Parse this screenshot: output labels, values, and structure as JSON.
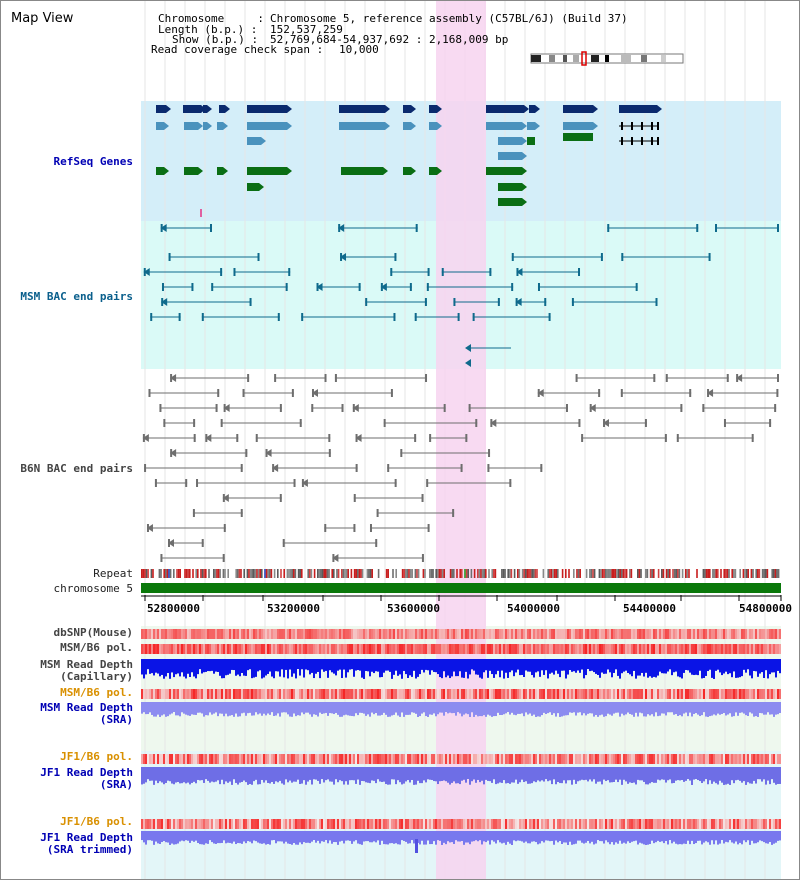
{
  "page_title": "Map View",
  "info": {
    "chromosome_key": "Chromosome     :",
    "chromosome_val": "Chromosome 5, reference assembly (C57BL/6J) (Build 37)",
    "length_key": "Length (b.p.) :",
    "length_val": "152,537,259",
    "show_key": "Show (b.p.) :",
    "show_val": "52,769,684-54,937,692 : 2,168,009 bp",
    "coverage_key": "Read coverage check span :",
    "coverage_val": "10,000"
  },
  "tracks": {
    "refseq": "RefSeq Genes",
    "msm_bac": "MSM BAC end pairs",
    "b6n_bac": "B6N BAC end pairs",
    "repeat": "Repeat",
    "chromosome": "chromosome 5",
    "dbsnp": "dbSNP(Mouse)",
    "msm_b6_pol_1": "MSM/B6 pol.",
    "msm_read_depth_cap_1": "MSM Read Depth",
    "msm_read_depth_cap_2": "(Capillary)",
    "msm_b6_pol_2": "MSM/B6 pol.",
    "msm_read_depth_sra_1": "MSM Read Depth",
    "msm_read_depth_sra_2": "(SRA)",
    "jf1_b6_pol_1": "JF1/B6 pol.",
    "jf1_read_depth_sra_1": "JF1 Read Depth",
    "jf1_read_depth_sra_2": "(SRA)",
    "jf1_b6_pol_2": "JF1/B6 pol.",
    "jf1_read_depth_trim_1": "JF1 Read Depth",
    "jf1_read_depth_trim_2": "(SRA trimmed)"
  },
  "axis_ticks": [
    "52800000",
    "53200000",
    "53600000",
    "54000000",
    "54400000",
    "54800000"
  ],
  "colors": {
    "refseq_bg": "#d4eef9",
    "msm_bg": "#dafaf7",
    "highlight": "#f7d3f0",
    "chromosome_bar": "#0a780a",
    "gene_dark": "#0a2a6e",
    "gene_mid": "#4a92bd",
    "gene_green": "#0a6e14",
    "bac_teal": "#0f6a8c",
    "bac_gray": "#6e6e6e"
  }
}
